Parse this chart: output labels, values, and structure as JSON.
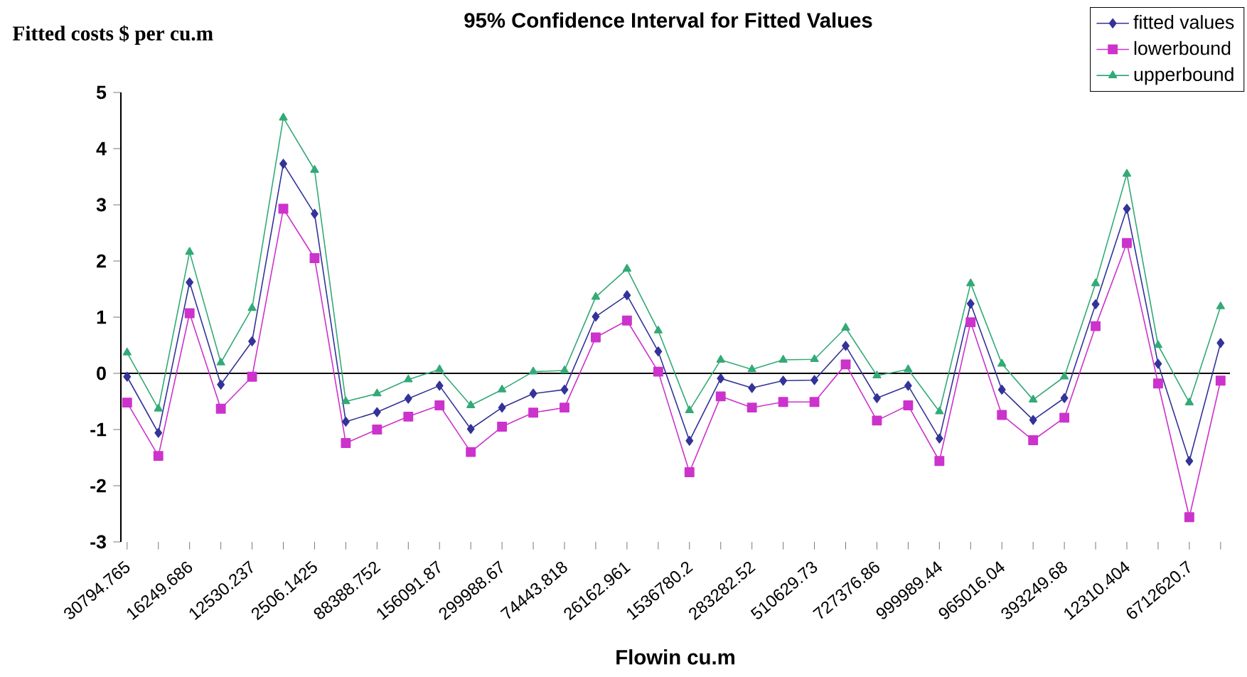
{
  "chart_data": {
    "type": "line",
    "title": "95% Confidence Interval for Fitted Values",
    "xlabel": "Flowin cu.m",
    "ylabel": "Fitted costs $ per cu.m",
    "categories": [
      "30794.765",
      null,
      "16249.686",
      null,
      "12530.237",
      null,
      "2506.1425",
      null,
      "88388.752",
      null,
      "156091.87",
      null,
      "299988.67",
      null,
      "74443.818",
      null,
      "26162.961",
      null,
      "1536780.2",
      null,
      "283282.52",
      null,
      "510629.73",
      null,
      "727376.86",
      null,
      "999989.44",
      null,
      "965016.04",
      null,
      "393249.68",
      null,
      "12310.404",
      null,
      "6712620.7",
      null
    ],
    "series": [
      {
        "name": "fitted values",
        "color": "#333399",
        "marker": "diamond",
        "values": [
          -0.06,
          -1.06,
          1.62,
          -0.2,
          0.57,
          3.73,
          2.84,
          -0.86,
          -0.69,
          -0.45,
          -0.22,
          -0.99,
          -0.61,
          -0.36,
          -0.29,
          1.01,
          1.39,
          0.39,
          -1.2,
          -0.09,
          -0.26,
          -0.13,
          -0.12,
          0.49,
          -0.44,
          -0.22,
          -1.16,
          1.24,
          -0.29,
          -0.83,
          -0.44,
          1.23,
          2.93,
          0.17,
          -1.56,
          0.54
        ]
      },
      {
        "name": "lowerbound",
        "color": "#cc33cc",
        "marker": "square",
        "values": [
          -0.52,
          -1.47,
          1.07,
          -0.63,
          -0.06,
          2.93,
          2.05,
          -1.24,
          -1.0,
          -0.77,
          -0.57,
          -1.4,
          -0.95,
          -0.7,
          -0.61,
          0.64,
          0.94,
          0.03,
          -1.76,
          -0.41,
          -0.61,
          -0.51,
          -0.51,
          0.16,
          -0.84,
          -0.57,
          -1.56,
          0.91,
          -0.74,
          -1.19,
          -0.79,
          0.84,
          2.32,
          -0.18,
          -2.56,
          -0.13
        ]
      },
      {
        "name": "upperbound",
        "color": "#33aa77",
        "marker": "triangle",
        "values": [
          0.37,
          -0.63,
          2.16,
          0.19,
          1.16,
          4.55,
          3.62,
          -0.5,
          -0.36,
          -0.11,
          0.07,
          -0.57,
          -0.29,
          0.03,
          0.05,
          1.36,
          1.86,
          0.76,
          -0.66,
          0.24,
          0.07,
          0.24,
          0.25,
          0.81,
          -0.04,
          0.07,
          -0.68,
          1.6,
          0.17,
          -0.47,
          -0.06,
          1.6,
          3.55,
          0.5,
          -0.52,
          1.19
        ]
      }
    ],
    "ylim": [
      -3,
      5
    ],
    "yticks": [
      -3,
      -2,
      -1,
      0,
      1,
      2,
      3,
      4,
      5
    ],
    "legend": "top right"
  }
}
